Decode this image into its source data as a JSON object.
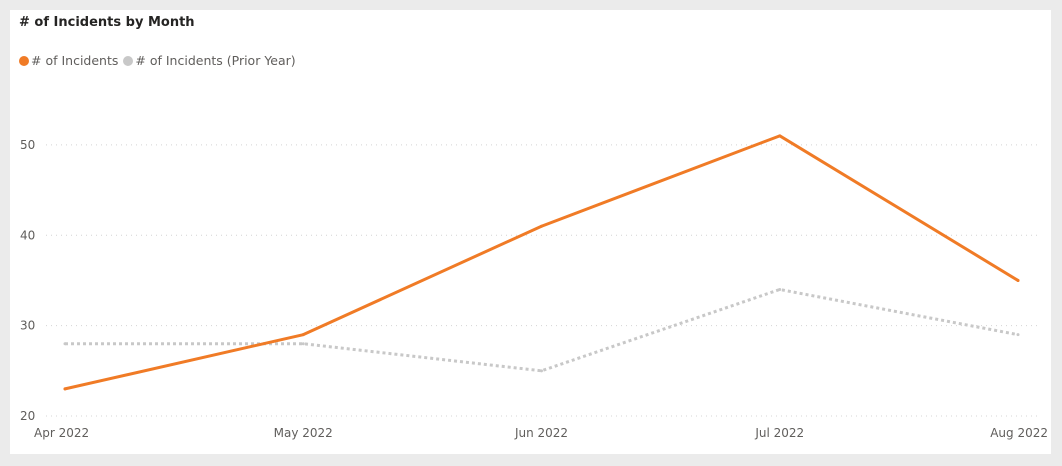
{
  "visual": {
    "title": "# of Incidents by Month"
  },
  "colors": {
    "primary": "#f07b26",
    "prior": "#c8c8c8",
    "grid": "#d4d4d4",
    "axis_text": "#605e5c"
  },
  "chart_data": {
    "type": "line",
    "title": "# of Incidents by Month",
    "xlabel": "",
    "ylabel": "",
    "categories": [
      "Apr 2022",
      "May 2022",
      "Jun 2022",
      "Jul 2022",
      "Aug 2022"
    ],
    "series": [
      {
        "name": "# of Incidents",
        "values": [
          23,
          29,
          41,
          51,
          35
        ],
        "color": "#f07b26",
        "style": "solid"
      },
      {
        "name": "# of Incidents (Prior Year)",
        "values": [
          28,
          28,
          25,
          34,
          29
        ],
        "color": "#c8c8c8",
        "style": "dotted"
      }
    ],
    "yticks": [
      20,
      30,
      40,
      50
    ],
    "ylim": [
      20,
      52.2
    ],
    "grid": true,
    "legend": "top-left"
  }
}
